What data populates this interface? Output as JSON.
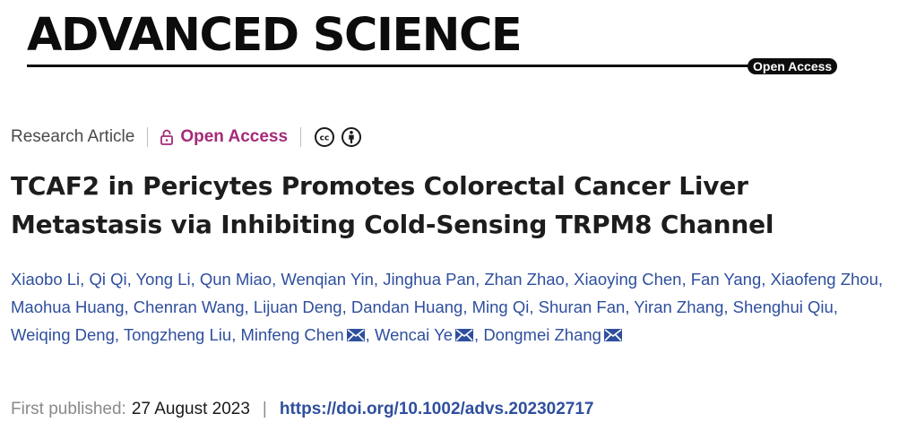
{
  "journal": {
    "name": "ADVANCED SCIENCE",
    "badge": "Open Access"
  },
  "article": {
    "type": "Research Article",
    "access_label": "Open Access",
    "license_icons": [
      "creative-commons-icon",
      "attribution-icon"
    ],
    "title": "TCAF2 in Pericytes Promotes Colorectal Cancer Liver Metastasis via Inhibiting Cold-Sensing TRPM8 Channel",
    "authors": [
      {
        "name": "Xiaobo Li",
        "corresponding": false
      },
      {
        "name": "Qi Qi",
        "corresponding": false
      },
      {
        "name": "Yong Li",
        "corresponding": false
      },
      {
        "name": "Qun Miao",
        "corresponding": false
      },
      {
        "name": "Wenqian Yin",
        "corresponding": false
      },
      {
        "name": "Jinghua Pan",
        "corresponding": false
      },
      {
        "name": "Zhan Zhao",
        "corresponding": false
      },
      {
        "name": "Xiaoying Chen",
        "corresponding": false
      },
      {
        "name": "Fan Yang",
        "corresponding": false
      },
      {
        "name": "Xiaofeng Zhou",
        "corresponding": false
      },
      {
        "name": "Maohua Huang",
        "corresponding": false
      },
      {
        "name": "Chenran Wang",
        "corresponding": false
      },
      {
        "name": "Lijuan Deng",
        "corresponding": false
      },
      {
        "name": "Dandan Huang",
        "corresponding": false
      },
      {
        "name": "Ming Qi",
        "corresponding": false
      },
      {
        "name": "Shuran Fan",
        "corresponding": false
      },
      {
        "name": "Yiran Zhang",
        "corresponding": false
      },
      {
        "name": "Shenghui Qiu",
        "corresponding": false
      },
      {
        "name": "Weiqing Deng",
        "corresponding": false
      },
      {
        "name": "Tongzheng Liu",
        "corresponding": false
      },
      {
        "name": "Minfeng Chen",
        "corresponding": true
      },
      {
        "name": "Wencai Ye",
        "corresponding": true
      },
      {
        "name": "Dongmei Zhang",
        "corresponding": true
      }
    ],
    "first_published_label": "First published:",
    "first_published_date": "27 August 2023",
    "doi": "https://doi.org/10.1002/advs.202302717"
  },
  "colors": {
    "link": "#2f4f9e",
    "open_access": "#a42a78",
    "text": "#1d1d1d",
    "muted": "#8a8a8a"
  }
}
